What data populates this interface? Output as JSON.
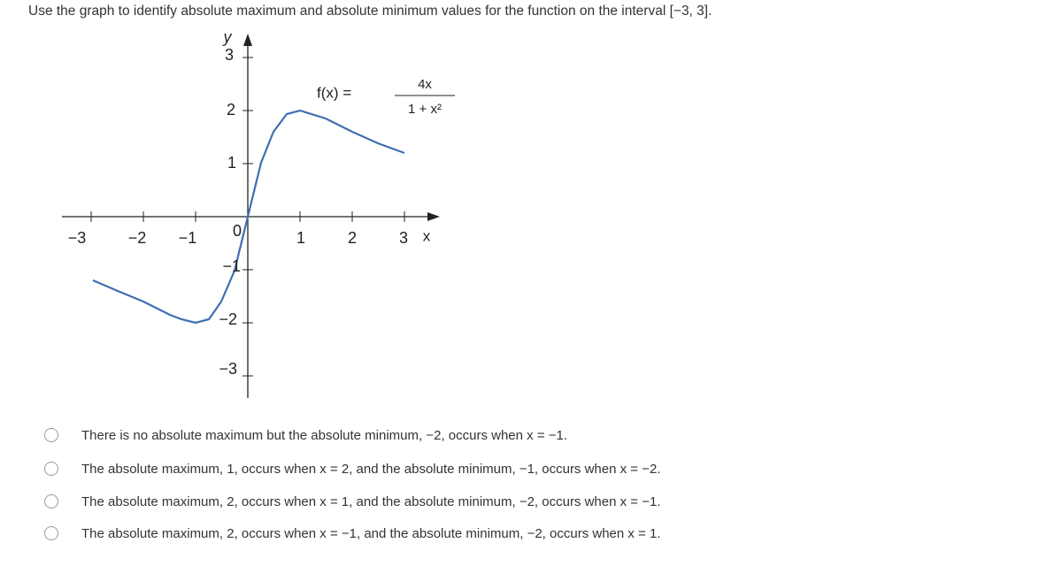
{
  "question": "Use the graph to identify absolute maximum and absolute minimum values for the function on the interval [−3, 3].",
  "graph": {
    "y_axis_label": "y",
    "x_axis_label": "x",
    "x_tick_labels": [
      "−3",
      "−2",
      "−1",
      "0",
      "1",
      "2",
      "3"
    ],
    "y_tick_labels": [
      "3",
      "2",
      "1",
      "−1",
      "−2",
      "−3"
    ],
    "function_label": "f(x) =",
    "numerator": "4x",
    "denominator": "1 + x²"
  },
  "options": [
    "There is no absolute maximum but the absolute minimum, −2, occurs when x = −1.",
    "The absolute maximum, 1, occurs when x = 2, and the absolute minimum, −1, occurs when x = −2.",
    "The absolute maximum, 2, occurs when x = 1, and the absolute minimum, −2, occurs when x = −1.",
    "The absolute maximum, 2, occurs when x = −1, and the absolute minimum, −2, occurs when x = 1."
  ]
}
